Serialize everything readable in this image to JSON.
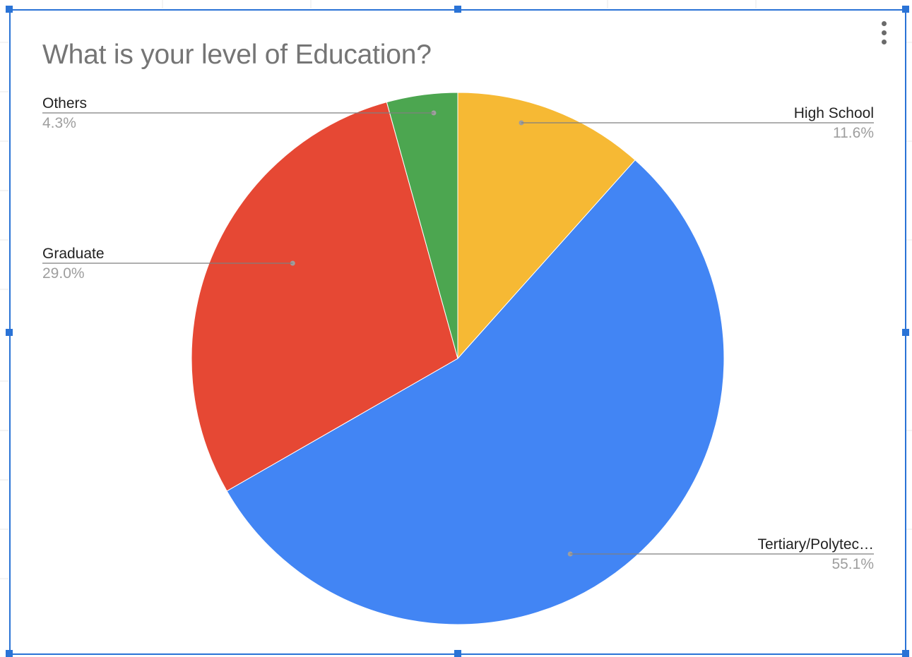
{
  "chart_data": {
    "type": "pie",
    "title": "What is your level of Education?",
    "slices": [
      {
        "label": "High School",
        "percent_label": "11.6%",
        "value": 11.6,
        "color": "#F6B934"
      },
      {
        "label": "Tertiary/Polytec…",
        "percent_label": "55.1%",
        "value": 55.1,
        "color": "#4285F4"
      },
      {
        "label": "Graduate",
        "percent_label": "29.0%",
        "value": 29.0,
        "color": "#E64834"
      },
      {
        "label": "Others",
        "percent_label": "4.3%",
        "value": 4.3,
        "color": "#4CA650"
      }
    ],
    "start_angle": "12 o'clock",
    "direction": "clockwise"
  },
  "colors": {
    "selection_border": "#2A73D6",
    "title_text": "#757575",
    "label_text": "#222222",
    "percent_text": "#9E9E9E",
    "leader_line": "#7F7F7F"
  },
  "icons": {
    "menu": "vertical-ellipsis-icon"
  }
}
